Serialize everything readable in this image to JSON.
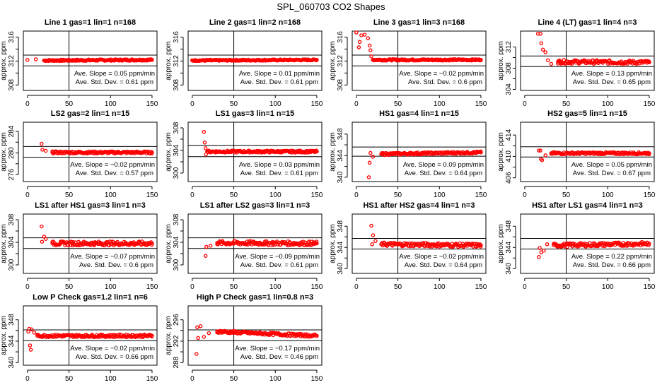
{
  "title": "SPL_060703  CO2 Shapes",
  "colors": {
    "points": "#ff0000",
    "lines": "#000000"
  },
  "chart_data": [
    {
      "type": "scatter",
      "title": "Line 1 gas=1 lin=1 n=168",
      "ylabel": "approx. ppm",
      "xlim": [
        -5,
        156
      ],
      "ylim": [
        307.1,
        317
      ],
      "xticks": [
        0,
        50,
        100,
        150
      ],
      "yticks": [
        308,
        312,
        316
      ],
      "vline": 50,
      "hlines": [
        313,
        311.2
      ],
      "points": [
        [
          0,
          312.2
        ],
        [
          10,
          312.3
        ],
        [
          20,
          312.1
        ],
        [
          150,
          312.2
        ]
      ],
      "slope_text": "Ave. Slope =  0.05  ppm/min",
      "std_text": "Ave. Std. Dev. =  0.61  ppm"
    },
    {
      "type": "scatter",
      "title": "Line 2 gas=1 lin=2 n=168",
      "ylabel": "approx. ppm",
      "xlim": [
        -5,
        156
      ],
      "ylim": [
        307.1,
        317
      ],
      "xticks": [
        0,
        50,
        100,
        150
      ],
      "yticks": [
        308,
        312,
        316
      ],
      "vline": 50,
      "hlines": [
        313,
        311.2
      ],
      "points": [
        [
          0,
          312.1
        ],
        [
          150,
          312.2
        ]
      ],
      "slope_text": "Ave. Slope =  0.01  ppm/min",
      "std_text": "Ave. Std. Dev. =  0.61  ppm"
    },
    {
      "type": "scatter",
      "title": "Line 3 gas=1 lin=3 n=168",
      "ylabel": "approx. ppm",
      "xlim": [
        -5,
        156
      ],
      "ylim": [
        307.1,
        317
      ],
      "xticks": [
        0,
        50,
        100,
        150
      ],
      "yticks": [
        308,
        312,
        316
      ],
      "vline": 50,
      "hlines": [
        313,
        311.2
      ],
      "points": [
        [
          0,
          317
        ],
        [
          3,
          314.3
        ],
        [
          4,
          315.2
        ],
        [
          6,
          316.3
        ],
        [
          10,
          316.4
        ],
        [
          14,
          315.8
        ],
        [
          16,
          314.6
        ],
        [
          17,
          313.8
        ],
        [
          18,
          312.8
        ],
        [
          20,
          312.2
        ],
        [
          150,
          312.2
        ]
      ],
      "slope_text": "Ave. Slope =  −0.02  ppm/min",
      "std_text": "Ave. Std. Dev. =  0.6  ppm"
    },
    {
      "type": "scatter",
      "title": "Line 4 (LT) gas=1 lin=4 n=3",
      "ylabel": "approx. ppm",
      "xlim": [
        -5,
        156
      ],
      "ylim": [
        303.8,
        315
      ],
      "xticks": [
        0,
        50,
        100,
        150
      ],
      "yticks": [
        304,
        308,
        312
      ],
      "vline": 50,
      "hlines": [
        310.3,
        308.3
      ],
      "points": [
        [
          16,
          314.5
        ],
        [
          19,
          314.5
        ],
        [
          20,
          312.7
        ],
        [
          22,
          311.5
        ],
        [
          25,
          311
        ],
        [
          28,
          309.5
        ],
        [
          32,
          308.8
        ],
        [
          40,
          309.2
        ],
        [
          150,
          309.1
        ]
      ],
      "slope_text": "Ave. Slope =  0.13  ppm/min",
      "std_text": "Ave. Std. Dev. =  0.65  ppm"
    },
    {
      "type": "scatter",
      "title": "LS2 gas=2 lin=1 n=15",
      "ylabel": "approx. ppm",
      "xlim": [
        -5,
        156
      ],
      "ylim": [
        274.7,
        285.7
      ],
      "xticks": [
        0,
        50,
        100,
        150
      ],
      "yticks": [
        276,
        280,
        284
      ],
      "vline": 50,
      "hlines": [
        281.2,
        279.2
      ],
      "points": [
        [
          17,
          281.7
        ],
        [
          18,
          280.6
        ],
        [
          22,
          280.4
        ],
        [
          30,
          280.1
        ],
        [
          150,
          280.1
        ]
      ],
      "slope_text": "Ave. Slope =  −0.02  ppm/min",
      "std_text": "Ave. Std. Dev. =  0.57  ppm"
    },
    {
      "type": "scatter",
      "title": "LS1 gas=3 lin=1 n=15",
      "ylabel": "approx. ppm",
      "xlim": [
        -5,
        156
      ],
      "ylim": [
        298.5,
        309
      ],
      "xticks": [
        0,
        50,
        100,
        150
      ],
      "yticks": [
        300,
        304,
        308
      ],
      "vline": 50,
      "hlines": [
        304.9,
        302.9
      ],
      "points": [
        [
          14,
          307.3
        ],
        [
          15,
          305.4
        ],
        [
          16,
          304.4
        ],
        [
          16.5,
          303.3
        ],
        [
          18,
          303.8
        ],
        [
          150,
          303.8
        ]
      ],
      "slope_text": "Ave. Slope =  0.03  ppm/min",
      "std_text": "Ave. Std. Dev. =  0.61  ppm"
    },
    {
      "type": "scatter",
      "title": "HS1 gas=4 lin=1 n=15",
      "ylabel": "approx. ppm",
      "xlim": [
        -5,
        156
      ],
      "ylim": [
        339.2,
        350.2
      ],
      "xticks": [
        0,
        50,
        100,
        150
      ],
      "yticks": [
        340,
        344,
        348
      ],
      "vline": 50,
      "hlines": [
        345.6,
        343.9
      ],
      "points": [
        [
          15,
          340
        ],
        [
          16,
          342.7
        ],
        [
          17,
          344.5
        ],
        [
          20,
          343.8
        ],
        [
          30,
          344.3
        ],
        [
          150,
          344.6
        ]
      ],
      "slope_text": "Ave. Slope =  0.09  ppm/min",
      "std_text": "Ave. Std. Dev. =  0.64  ppm"
    },
    {
      "type": "scatter",
      "title": "HS2 gas=5 lin=1 n=15",
      "ylabel": "approx. ppm",
      "xlim": [
        -5,
        156
      ],
      "ylim": [
        405.3,
        416.4
      ],
      "xticks": [
        0,
        50,
        100,
        150
      ],
      "yticks": [
        406,
        410,
        414
      ],
      "vline": 50,
      "hlines": [
        411.8,
        409.9
      ],
      "points": [
        [
          17,
          411.1
        ],
        [
          19,
          411.1
        ],
        [
          19.5,
          409.5
        ],
        [
          21,
          409.3
        ],
        [
          25,
          410.2
        ],
        [
          32,
          410.6
        ],
        [
          150,
          410.6
        ]
      ],
      "slope_text": "Ave. Slope =  0.05  ppm/min",
      "std_text": "Ave. Std. Dev. =  0.67  ppm"
    },
    {
      "type": "scatter",
      "title": "LS1 after HS1 gas=3 lin=1 n=3",
      "ylabel": "approx. ppm",
      "xlim": [
        -5,
        156
      ],
      "ylim": [
        298.5,
        309
      ],
      "xticks": [
        0,
        50,
        100,
        150
      ],
      "yticks": [
        300,
        304,
        308
      ],
      "vline": 50,
      "hlines": [
        304.8,
        302.9
      ],
      "points": [
        [
          17,
          306.8
        ],
        [
          17.5,
          304.1
        ],
        [
          20,
          305
        ],
        [
          22,
          304.6
        ],
        [
          30,
          303.8
        ],
        [
          150,
          303.8
        ]
      ],
      "slope_text": "Ave. Slope =  −0.07  ppm/min",
      "std_text": "Ave. Std. Dev. =  0.6  ppm"
    },
    {
      "type": "scatter",
      "title": "LS1 after LS2 gas=3 lin=1 n=3",
      "ylabel": "approx. ppm",
      "xlim": [
        -5,
        156
      ],
      "ylim": [
        298.5,
        309
      ],
      "xticks": [
        0,
        50,
        100,
        150
      ],
      "yticks": [
        300,
        304,
        308
      ],
      "vline": 50,
      "hlines": [
        304.8,
        302.9
      ],
      "points": [
        [
          16,
          301.6
        ],
        [
          17,
          303.2
        ],
        [
          22,
          303.4
        ],
        [
          30,
          303.9
        ],
        [
          150,
          303.8
        ]
      ],
      "slope_text": "Ave. Slope =  −0.09  ppm/min",
      "std_text": "Ave. Std. Dev. =  0.61  ppm"
    },
    {
      "type": "scatter",
      "title": "HS1 after HS2 gas=4 lin=1 n=3",
      "ylabel": "approx. ppm",
      "xlim": [
        -5,
        156
      ],
      "ylim": [
        339.1,
        350.3
      ],
      "xticks": [
        0,
        50,
        100,
        150
      ],
      "yticks": [
        340,
        344,
        348
      ],
      "vline": 50,
      "hlines": [
        345.7,
        343.7
      ],
      "points": [
        [
          18,
          348.1
        ],
        [
          19,
          344.6
        ],
        [
          20,
          346.3
        ],
        [
          23,
          345.2
        ],
        [
          30,
          344.6
        ],
        [
          150,
          344.4
        ]
      ],
      "slope_text": "Ave. Slope =  −0.02  ppm/min",
      "std_text": "Ave. Std. Dev. =  0.64  ppm"
    },
    {
      "type": "scatter",
      "title": "HS1 after LS1 gas=4 lin=1 n=3",
      "ylabel": "approx. ppm",
      "xlim": [
        -5,
        156
      ],
      "ylim": [
        339.1,
        350.3
      ],
      "xticks": [
        0,
        50,
        100,
        150
      ],
      "yticks": [
        340,
        344,
        348
      ],
      "vline": 50,
      "hlines": [
        345.7,
        343.7
      ],
      "points": [
        [
          17,
          342.2
        ],
        [
          18,
          343.9
        ],
        [
          20,
          343.1
        ],
        [
          23,
          343.4
        ],
        [
          27,
          344.6
        ],
        [
          35,
          344.4
        ],
        [
          150,
          344.7
        ]
      ],
      "slope_text": "Ave. Slope =  0.22  ppm/min",
      "std_text": "Ave. Std. Dev. =  0.66  ppm"
    },
    {
      "type": "scatter",
      "title": "Low P Check gas=1.2 lin=1 n=6",
      "ylabel": "approx. ppm",
      "xlim": [
        -5,
        156
      ],
      "ylim": [
        339.5,
        350.6
      ],
      "xticks": [
        0,
        50,
        100,
        150
      ],
      "yticks": [
        340,
        344,
        348
      ],
      "vline": 50,
      "hlines": [
        346.1,
        344.1
      ],
      "points": [
        [
          1,
          345.8
        ],
        [
          2,
          346.3
        ],
        [
          3,
          343.2
        ],
        [
          4,
          342.4
        ],
        [
          5,
          346.2
        ],
        [
          8,
          345.6
        ],
        [
          12,
          345
        ],
        [
          150,
          345
        ]
      ],
      "slope_text": "Ave. Slope =  −0.02  ppm/min",
      "std_text": "Ave. Std. Dev. =  0.66  ppm"
    },
    {
      "type": "scatter",
      "title": "High P Check gas=1 lin=0.8 n=3",
      "ylabel": "approx. ppm",
      "xlim": [
        -5,
        156
      ],
      "ylim": [
        287.5,
        298.6
      ],
      "xticks": [
        0,
        50,
        100,
        150
      ],
      "yticks": [
        288,
        292,
        296
      ],
      "vline": 50,
      "hlines": [
        294.1,
        292.1
      ],
      "points": [
        [
          5,
          289.6
        ],
        [
          6,
          294.6
        ],
        [
          7,
          292.6
        ],
        [
          10,
          294.8
        ],
        [
          14,
          292.8
        ],
        [
          20,
          293.5
        ],
        [
          30,
          293.8
        ],
        [
          150,
          293
        ]
      ],
      "slope_text": "Ave. Slope =  −0.17  ppm/min",
      "std_text": "Ave. Std. Dev. =  0.46  ppm"
    }
  ]
}
